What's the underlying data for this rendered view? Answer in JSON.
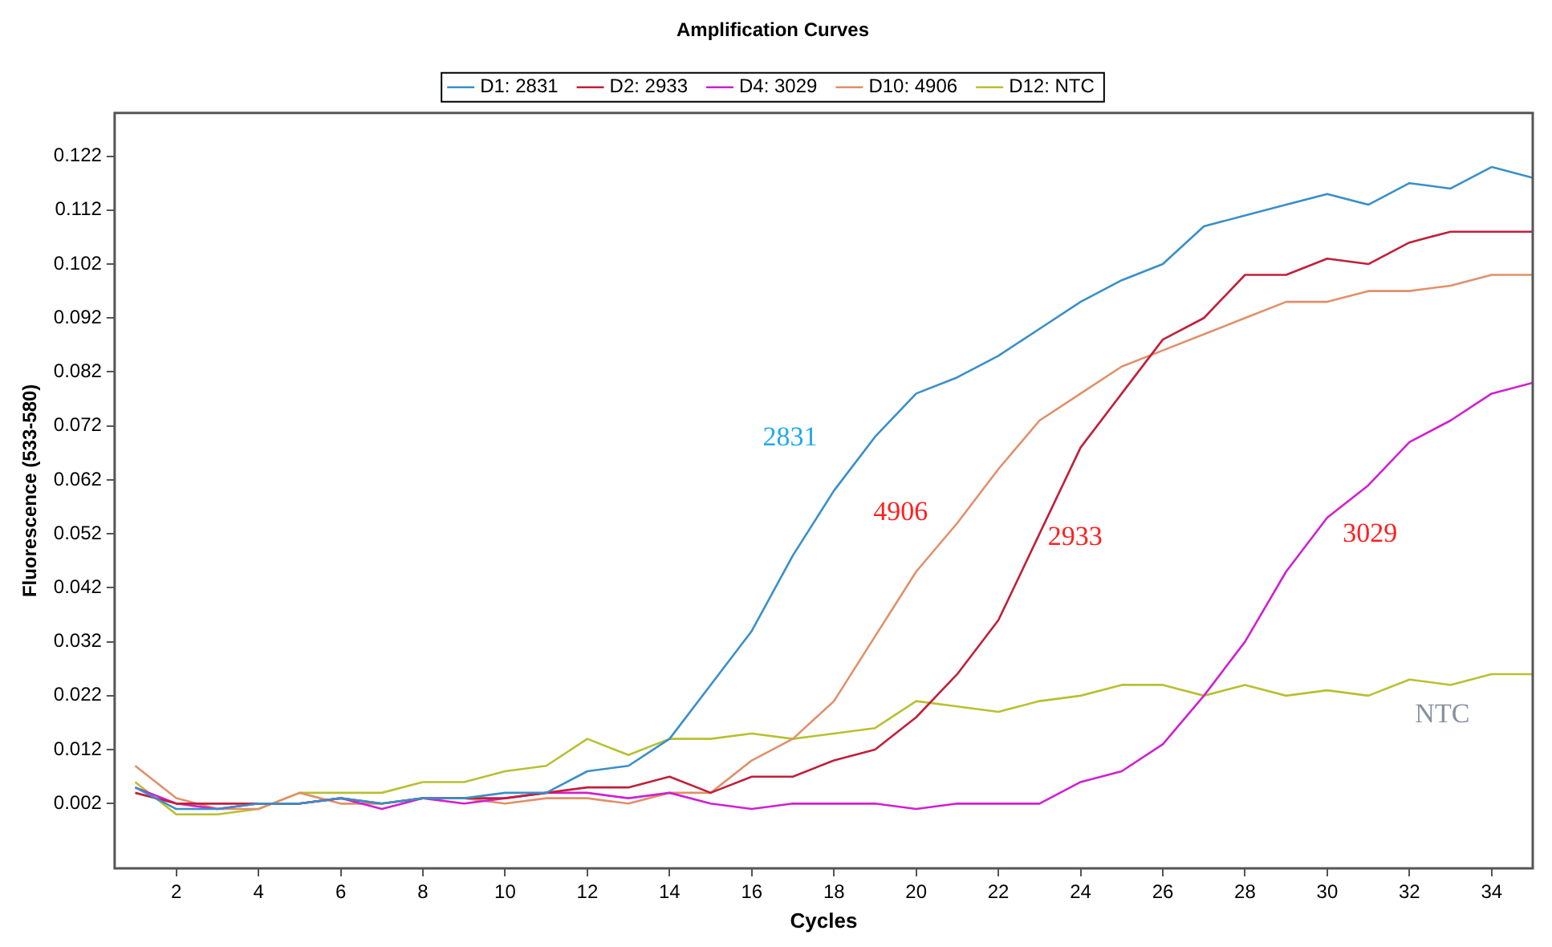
{
  "chart_data": {
    "type": "line",
    "title": "Amplification Curves",
    "xlabel": "Cycles",
    "ylabel": "Fluorescence (533-580)",
    "x": [
      1,
      2,
      3,
      4,
      5,
      6,
      7,
      8,
      9,
      10,
      11,
      12,
      13,
      14,
      15,
      16,
      17,
      18,
      19,
      20,
      21,
      22,
      23,
      24,
      25,
      26,
      27,
      28,
      29,
      30,
      31,
      32,
      33,
      34,
      35
    ],
    "series": [
      {
        "name": "D1: 2831",
        "color": "#3a8fc8",
        "values": [
          0.005,
          0.001,
          0.001,
          0.002,
          0.002,
          0.003,
          0.002,
          0.003,
          0.003,
          0.004,
          0.004,
          0.008,
          0.009,
          0.014,
          0.024,
          0.034,
          0.048,
          0.06,
          0.07,
          0.078,
          0.081,
          0.085,
          0.09,
          0.095,
          0.099,
          0.102,
          0.109,
          0.111,
          0.113,
          0.115,
          0.113,
          0.117,
          0.116,
          0.12,
          0.118
        ]
      },
      {
        "name": "D2: 2933",
        "color": "#c0203a",
        "values": [
          0.004,
          0.002,
          0.002,
          0.002,
          0.002,
          0.003,
          0.002,
          0.003,
          0.003,
          0.003,
          0.004,
          0.005,
          0.005,
          0.007,
          0.004,
          0.007,
          0.007,
          0.01,
          0.012,
          0.018,
          0.026,
          0.036,
          0.052,
          0.068,
          0.078,
          0.088,
          0.092,
          0.1,
          0.1,
          0.103,
          0.102,
          0.106,
          0.108,
          0.108,
          0.108
        ]
      },
      {
        "name": "D4: 3029",
        "color": "#d020d0",
        "values": [
          0.005,
          0.002,
          0.001,
          0.002,
          0.002,
          0.003,
          0.001,
          0.003,
          0.002,
          0.003,
          0.004,
          0.004,
          0.003,
          0.004,
          0.002,
          0.001,
          0.002,
          0.002,
          0.002,
          0.001,
          0.002,
          0.002,
          0.002,
          0.006,
          0.008,
          0.013,
          0.022,
          0.032,
          0.045,
          0.055,
          0.061,
          0.069,
          0.073,
          0.078,
          0.08
        ]
      },
      {
        "name": "D10: 4906",
        "color": "#e0906a",
        "values": [
          0.009,
          0.003,
          0.001,
          0.001,
          0.004,
          0.002,
          0.002,
          0.003,
          0.003,
          0.002,
          0.003,
          0.003,
          0.002,
          0.004,
          0.004,
          0.01,
          0.014,
          0.021,
          0.033,
          0.045,
          0.054,
          0.064,
          0.073,
          0.078,
          0.083,
          0.086,
          0.089,
          0.092,
          0.095,
          0.095,
          0.097,
          0.097,
          0.098,
          0.1,
          0.1
        ]
      },
      {
        "name": "D12: NTC",
        "color": "#b8c030",
        "values": [
          0.006,
          0.0,
          0.0,
          0.001,
          0.004,
          0.004,
          0.004,
          0.006,
          0.006,
          0.008,
          0.009,
          0.014,
          0.011,
          0.014,
          0.014,
          0.015,
          0.014,
          0.015,
          0.016,
          0.021,
          0.02,
          0.019,
          0.021,
          0.022,
          0.024,
          0.024,
          0.022,
          0.024,
          0.022,
          0.023,
          0.022,
          0.025,
          0.024,
          0.026,
          0.026
        ]
      }
    ],
    "annotations": [
      "2831",
      "4906",
      "2933",
      "3029",
      "NTC"
    ],
    "xlim": [
      0.5,
      35
    ],
    "xticks": [
      2,
      4,
      6,
      8,
      10,
      12,
      14,
      16,
      18,
      20,
      22,
      24,
      26,
      28,
      30,
      32,
      34
    ],
    "ylim": [
      -0.01,
      0.13
    ],
    "yticks": [
      0.002,
      0.012,
      0.022,
      0.032,
      0.042,
      0.052,
      0.062,
      0.072,
      0.082,
      0.092,
      0.102,
      0.112,
      0.122
    ],
    "grid": false,
    "legend": "top",
    "marker": "none",
    "line_style": "solid"
  }
}
